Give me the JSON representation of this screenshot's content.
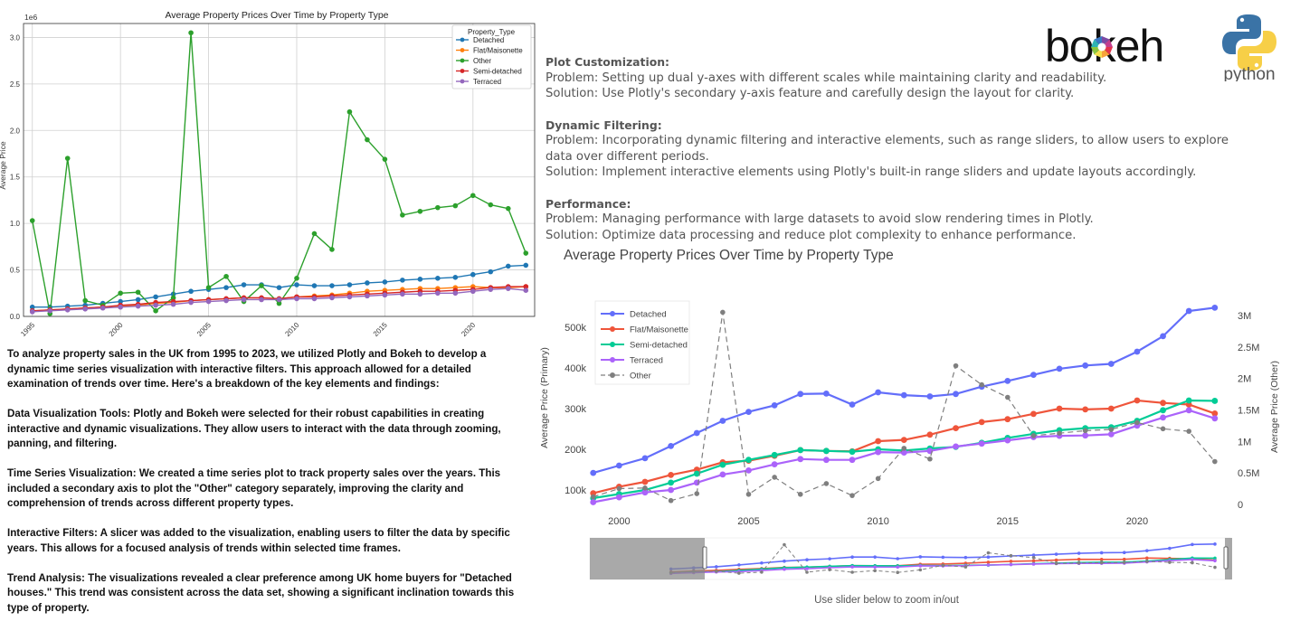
{
  "chart_data": [
    {
      "type": "line",
      "title": "Average Property Prices Over Time by Property Type",
      "xlabel": "",
      "ylabel": "Average Price",
      "y_scale_note": "1e6",
      "ylim": [
        0,
        3.15
      ],
      "xlim": [
        1994.5,
        2023.5
      ],
      "x_ticks": [
        1995,
        2000,
        2005,
        2010,
        2015,
        2020
      ],
      "y_ticks": [
        0.0,
        0.5,
        1.0,
        1.5,
        2.0,
        2.5,
        3.0
      ],
      "grid": true,
      "legend_title": "Property_Type",
      "legend_position": "top-right",
      "x": [
        1995,
        1996,
        1997,
        1998,
        1999,
        2000,
        2001,
        2002,
        2003,
        2004,
        2005,
        2006,
        2007,
        2008,
        2009,
        2010,
        2011,
        2012,
        2013,
        2014,
        2015,
        2016,
        2017,
        2018,
        2019,
        2020,
        2021,
        2022,
        2023
      ],
      "series": [
        {
          "name": "Detached",
          "color": "#1f77b4",
          "values": [
            0.1,
            0.1,
            0.11,
            0.12,
            0.14,
            0.16,
            0.18,
            0.21,
            0.24,
            0.27,
            0.29,
            0.31,
            0.34,
            0.34,
            0.31,
            0.34,
            0.33,
            0.33,
            0.34,
            0.36,
            0.37,
            0.39,
            0.4,
            0.41,
            0.42,
            0.45,
            0.48,
            0.54,
            0.55
          ]
        },
        {
          "name": "Flat/Maisonette",
          "color": "#ff7f0e",
          "values": [
            0.06,
            0.07,
            0.08,
            0.09,
            0.1,
            0.11,
            0.12,
            0.14,
            0.15,
            0.17,
            0.18,
            0.19,
            0.2,
            0.2,
            0.19,
            0.21,
            0.22,
            0.23,
            0.25,
            0.27,
            0.28,
            0.29,
            0.3,
            0.3,
            0.31,
            0.32,
            0.31,
            0.31,
            0.32
          ]
        },
        {
          "name": "Other",
          "color": "#2ca02c",
          "values": [
            1.03,
            0.03,
            1.7,
            0.17,
            0.12,
            0.25,
            0.26,
            0.06,
            0.2,
            3.05,
            0.31,
            0.43,
            0.16,
            0.33,
            0.14,
            0.41,
            0.89,
            0.72,
            2.2,
            1.9,
            1.69,
            1.09,
            1.13,
            1.17,
            1.19,
            1.3,
            1.2,
            1.16,
            0.68
          ]
        },
        {
          "name": "Semi-detached",
          "color": "#d62728",
          "values": [
            0.06,
            0.07,
            0.08,
            0.09,
            0.1,
            0.12,
            0.13,
            0.15,
            0.16,
            0.17,
            0.18,
            0.19,
            0.2,
            0.2,
            0.19,
            0.21,
            0.21,
            0.22,
            0.23,
            0.24,
            0.25,
            0.26,
            0.27,
            0.27,
            0.28,
            0.29,
            0.31,
            0.32,
            0.32
          ]
        },
        {
          "name": "Terraced",
          "color": "#9467bd",
          "values": [
            0.05,
            0.06,
            0.07,
            0.08,
            0.09,
            0.1,
            0.11,
            0.12,
            0.13,
            0.15,
            0.16,
            0.17,
            0.18,
            0.18,
            0.18,
            0.19,
            0.19,
            0.2,
            0.21,
            0.22,
            0.23,
            0.24,
            0.24,
            0.25,
            0.25,
            0.27,
            0.29,
            0.3,
            0.28
          ]
        }
      ]
    },
    {
      "type": "line",
      "title": "Average Property Prices Over Time by Property Type",
      "xlabel": "",
      "ylabel": "Average Price (Primary)",
      "ylabel_secondary": "Average Price (Other)",
      "xlim": [
        1998.8,
        2023.6
      ],
      "ylim": [
        60000,
        560000
      ],
      "ylim_secondary": [
        -30000,
        3200000
      ],
      "x_ticks": [
        2000,
        2005,
        2010,
        2015,
        2020
      ],
      "y_ticks": [
        100000,
        200000,
        300000,
        400000,
        500000
      ],
      "y_tick_labels": [
        "100k",
        "200k",
        "300k",
        "400k",
        "500k"
      ],
      "y2_ticks": [
        0,
        500000,
        1000000,
        1500000,
        2000000,
        2500000,
        3000000
      ],
      "y2_tick_labels": [
        "0",
        "0.5M",
        "1M",
        "1.5M",
        "2M",
        "2.5M",
        "3M"
      ],
      "grid": false,
      "legend_position": "top-left",
      "range_slider": true,
      "slider_caption": "Use slider below to zoom in/out",
      "x": [
        1999,
        2000,
        2001,
        2002,
        2003,
        2004,
        2005,
        2006,
        2007,
        2008,
        2009,
        2010,
        2011,
        2012,
        2013,
        2014,
        2015,
        2016,
        2017,
        2018,
        2019,
        2020,
        2021,
        2022,
        2023
      ],
      "series": [
        {
          "name": "Detached",
          "color": "#636efa",
          "axis": "primary",
          "dash": false,
          "values": [
            142000,
            160000,
            178000,
            208000,
            240000,
            270000,
            292000,
            308000,
            336000,
            337000,
            310000,
            340000,
            333000,
            330000,
            336000,
            354000,
            368000,
            383000,
            398000,
            406000,
            410000,
            440000,
            478000,
            540000,
            548000
          ]
        },
        {
          "name": "Flat/Maisonette",
          "color": "#ef553b",
          "axis": "primary",
          "dash": false,
          "values": [
            92000,
            108000,
            120000,
            137000,
            150000,
            168000,
            172000,
            184000,
            198000,
            196000,
            195000,
            220000,
            223000,
            236000,
            252000,
            267000,
            274000,
            287000,
            300000,
            298000,
            300000,
            320000,
            314000,
            310000,
            288000
          ]
        },
        {
          "name": "Semi-detached",
          "color": "#00cc96",
          "axis": "primary",
          "dash": false,
          "values": [
            80000,
            90000,
            100000,
            118000,
            140000,
            162000,
            174000,
            186000,
            198000,
            196000,
            194000,
            200000,
            197000,
            202000,
            206000,
            216000,
            228000,
            238000,
            247000,
            252000,
            254000,
            270000,
            296000,
            320000,
            319000
          ]
        },
        {
          "name": "Terraced",
          "color": "#ab63fa",
          "axis": "primary",
          "dash": false,
          "values": [
            70000,
            82000,
            94000,
            100000,
            118000,
            138000,
            148000,
            163000,
            176000,
            174000,
            174000,
            193000,
            192000,
            196000,
            207000,
            214000,
            222000,
            230000,
            233000,
            234000,
            237000,
            258000,
            278000,
            296000,
            276000
          ]
        },
        {
          "name": "Other",
          "color": "#7f7f7f",
          "axis": "secondary",
          "dash": true,
          "values": [
            120000,
            250000,
            260000,
            60000,
            170000,
            3050000,
            160000,
            430000,
            160000,
            330000,
            140000,
            410000,
            890000,
            720000,
            2200000,
            1900000,
            1700000,
            1090000,
            1130000,
            1170000,
            1190000,
            1300000,
            1200000,
            1160000,
            680000
          ]
        }
      ]
    }
  ],
  "description": {
    "paragraphs": [
      "To analyze property sales in the UK from 1995 to 2023, we utilized Plotly and Bokeh to develop a dynamic time series visualization with interactive filters. This approach allowed for a detailed examination of trends over time. Here's a breakdown of the key elements and findings:",
      "Data Visualization Tools: Plotly and Bokeh were selected for their robust capabilities in creating interactive and dynamic visualizations. They allow users to interact with the data through zooming, panning, and filtering.",
      "Time Series Visualization: We created a time series plot to track property sales over the years. This included a secondary axis to plot the \"Other\" category separately, improving the clarity and comprehension of trends across different property types.",
      "Interactive Filters: A slicer was added to the visualization, enabling users to filter the data by specific years. This allows for a focused analysis of trends within selected time frames.",
      "Trend Analysis: The visualizations revealed a clear preference among UK home buyers for \"Detached houses.\" This trend was consistent across the data set, showing a significant inclination towards this type of property."
    ]
  },
  "challenges": [
    {
      "heading": "Plot Customization:",
      "problem": "Problem: Setting up dual y-axes with different scales while maintaining clarity and readability.",
      "solution": "Solution: Use Plotly's secondary y-axis feature and carefully design the layout for clarity."
    },
    {
      "heading": "Dynamic Filtering:",
      "problem": "Problem: Incorporating dynamic filtering and interactive elements, such as range sliders, to allow users to explore data over different periods.",
      "solution": "Solution: Implement interactive elements using Plotly's built-in range sliders and update layouts accordingly."
    },
    {
      "heading": "Performance:",
      "problem": "Problem: Managing performance with large datasets to avoid slow rendering times in Plotly.",
      "solution": "Solution: Optimize data processing and reduce plot complexity to enhance performance."
    }
  ],
  "logos": {
    "bokeh_text": "bokeh",
    "python_text": "python",
    "bokeh_colors": [
      "#e3344c",
      "#f7a33b",
      "#f5df4d",
      "#8ac640",
      "#2fb4b3",
      "#3b78c4",
      "#7c4aa3",
      "#c43d8e"
    ],
    "python_colors": [
      "#3a73a6",
      "#f7cf47"
    ]
  }
}
